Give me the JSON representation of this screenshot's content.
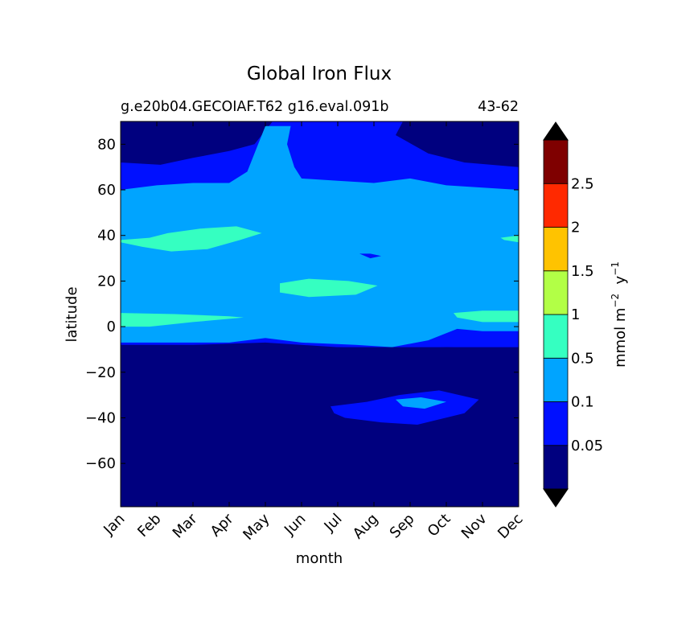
{
  "chart_data": {
    "type": "heatmap",
    "title": "Global Iron Flux",
    "subtitle_left": "g.e20b04.GECOIAF.T62 g16.eval.091b",
    "subtitle_right": "43-62",
    "xlabel": "month",
    "ylabel": "latitude",
    "x_tick_labels": [
      "Jan",
      "Feb",
      "Mar",
      "Apr",
      "May",
      "Jun",
      "Jul",
      "Aug",
      "Sep",
      "Oct",
      "Nov",
      "Dec"
    ],
    "y_ticks": [
      80,
      60,
      40,
      20,
      0,
      -20,
      -40,
      -60
    ],
    "y_tick_labels": [
      "80",
      "60",
      "40",
      "20",
      "0",
      "−20",
      "−40",
      "−60"
    ],
    "xlim": [
      1,
      12
    ],
    "ylim": [
      -79,
      90
    ],
    "colorbar": {
      "label_main": "mmol m",
      "label_sup1": "−2",
      "label_mid": "  y",
      "label_sup2": "−1",
      "extend": "both",
      "levels": [
        0.05,
        0.1,
        0.5,
        1,
        1.5,
        2,
        2.5
      ],
      "tick_labels": [
        "0.05",
        "0.1",
        "0.5",
        "1",
        "1.5",
        "2",
        "2.5"
      ],
      "colors": [
        "#00007f",
        "#0010ff",
        "#00a4ff",
        "#35ffc1",
        "#b2ff46",
        "#ffc300",
        "#ff2900",
        "#7f0000"
      ],
      "extend_colors": {
        "under": "#000000",
        "over": "#000000"
      }
    },
    "regions": [
      {
        "level": 0,
        "polygon": [
          [
            1,
            90
          ],
          [
            12,
            90
          ],
          [
            12,
            -79
          ],
          [
            1,
            -79
          ]
        ]
      },
      {
        "level": 1,
        "polygon": [
          [
            1,
            72
          ],
          [
            2.1,
            71
          ],
          [
            3,
            74
          ],
          [
            4,
            77
          ],
          [
            4.7,
            80
          ],
          [
            5.2,
            90
          ],
          [
            8.8,
            90
          ],
          [
            8.6,
            84
          ],
          [
            9.5,
            76
          ],
          [
            10.5,
            72
          ],
          [
            12,
            70
          ],
          [
            12,
            -10
          ],
          [
            10,
            -9
          ],
          [
            8.5,
            -10
          ],
          [
            7,
            -9
          ],
          [
            5,
            -7
          ],
          [
            3,
            -8
          ],
          [
            1,
            -8
          ]
        ]
      },
      {
        "level": 2,
        "polygon": [
          [
            1,
            60
          ],
          [
            2,
            62
          ],
          [
            3,
            63
          ],
          [
            4,
            63
          ],
          [
            4.5,
            68
          ],
          [
            4.8,
            80
          ],
          [
            5,
            88
          ],
          [
            5.7,
            88
          ],
          [
            5.6,
            80
          ],
          [
            5.8,
            70
          ],
          [
            6,
            65
          ],
          [
            7,
            64
          ],
          [
            8,
            63
          ],
          [
            9,
            65
          ],
          [
            10,
            62
          ],
          [
            11,
            61
          ],
          [
            12,
            60
          ],
          [
            12,
            -2
          ],
          [
            11,
            -2
          ],
          [
            10.3,
            -1
          ],
          [
            9.5,
            -6
          ],
          [
            8.5,
            -9
          ],
          [
            7.5,
            -8
          ],
          [
            6,
            -7
          ],
          [
            5,
            -5
          ],
          [
            4,
            -7
          ],
          [
            2.5,
            -7
          ],
          [
            1,
            -7
          ]
        ]
      },
      {
        "level": 1,
        "polygon": [
          [
            7.6,
            32
          ],
          [
            7.9,
            30
          ],
          [
            8.2,
            31
          ],
          [
            7.9,
            32
          ]
        ]
      },
      {
        "level": 3,
        "polygon": [
          [
            1,
            38
          ],
          [
            1.8,
            39
          ],
          [
            2.3,
            41
          ],
          [
            3.2,
            43
          ],
          [
            4.2,
            44
          ],
          [
            4.9,
            41
          ],
          [
            4.3,
            38
          ],
          [
            3.4,
            34
          ],
          [
            2.4,
            33
          ],
          [
            1.6,
            35
          ],
          [
            1,
            37
          ]
        ]
      },
      {
        "level": 3,
        "polygon": [
          [
            5.4,
            19
          ],
          [
            6.2,
            21
          ],
          [
            7.3,
            20
          ],
          [
            8.1,
            18
          ],
          [
            7.5,
            14
          ],
          [
            6.2,
            13
          ],
          [
            5.4,
            15
          ]
        ]
      },
      {
        "level": 3,
        "polygon": [
          [
            1,
            6
          ],
          [
            2.5,
            5.5
          ],
          [
            4,
            4.5
          ],
          [
            4.4,
            4
          ],
          [
            3,
            2
          ],
          [
            1.8,
            0
          ],
          [
            1,
            0
          ]
        ]
      },
      {
        "level": 3,
        "polygon": [
          [
            10.2,
            6
          ],
          [
            11,
            7
          ],
          [
            12,
            7
          ],
          [
            12,
            2
          ],
          [
            11,
            2
          ],
          [
            10.3,
            4
          ]
        ]
      },
      {
        "level": 3,
        "polygon": [
          [
            11.5,
            39
          ],
          [
            12,
            40
          ],
          [
            12,
            37
          ],
          [
            11.6,
            38
          ]
        ]
      },
      {
        "level": 0,
        "polygon": [
          [
            1,
            -9
          ],
          [
            12,
            -9
          ],
          [
            12,
            -79
          ],
          [
            1,
            -79
          ]
        ]
      },
      {
        "level": 1,
        "polygon": [
          [
            6.8,
            -35
          ],
          [
            7.8,
            -33
          ],
          [
            8.7,
            -30
          ],
          [
            9.8,
            -28
          ],
          [
            10.9,
            -32
          ],
          [
            10.5,
            -38
          ],
          [
            9.2,
            -43
          ],
          [
            8.2,
            -42
          ],
          [
            7.2,
            -40
          ],
          [
            6.9,
            -38
          ]
        ]
      },
      {
        "level": 2,
        "polygon": [
          [
            8.6,
            -32
          ],
          [
            9.3,
            -31
          ],
          [
            10,
            -33
          ],
          [
            9.4,
            -36
          ],
          [
            8.8,
            -35
          ]
        ]
      }
    ]
  }
}
